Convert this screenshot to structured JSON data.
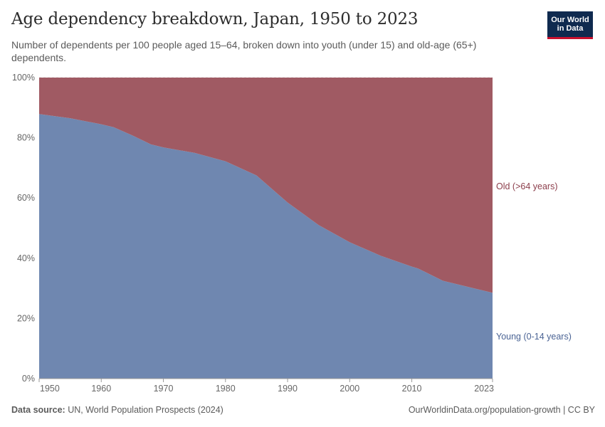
{
  "title": "Age dependency breakdown, Japan, 1950 to 2023",
  "subtitle": "Number of dependents per 100 people aged 15–64, broken down into youth (under 15) and old-age (65+) dependents.",
  "logo": {
    "line1": "Our World",
    "line2": "in Data"
  },
  "footer": {
    "source_label": "Data source:",
    "source_text": "UN, World Population Prospects (2024)",
    "url_text": "OurWorldinData.org/population-growth | CC BY"
  },
  "colors": {
    "young": "#6f87b0",
    "old": "#a05a63",
    "young_label": "#4a6394",
    "old_label": "#8c3e4b"
  },
  "chart_data": {
    "type": "area",
    "stacked": true,
    "relative": true,
    "x": [
      1950,
      1955,
      1960,
      1962,
      1965,
      1968,
      1970,
      1975,
      1980,
      1985,
      1990,
      1995,
      2000,
      2005,
      2010,
      2011,
      2015,
      2020,
      2023
    ],
    "series": [
      {
        "name": "Young (0-14 years)",
        "values": [
          87.9,
          86.5,
          84.5,
          83.5,
          80.8,
          77.8,
          76.8,
          75.0,
          72.2,
          67.5,
          58.5,
          51.0,
          45.3,
          40.8,
          37.2,
          36.6,
          32.5,
          30.0,
          28.5
        ]
      },
      {
        "name": "Old (>64 years)",
        "values": [
          12.1,
          13.5,
          15.5,
          16.5,
          19.2,
          22.2,
          23.2,
          25.0,
          27.8,
          32.5,
          41.5,
          49.0,
          54.7,
          59.2,
          62.8,
          63.4,
          67.5,
          70.0,
          71.5
        ]
      }
    ],
    "ylim": [
      0,
      100
    ],
    "yticks": [
      "0%",
      "20%",
      "40%",
      "60%",
      "80%",
      "100%"
    ],
    "xticks": [
      "1950",
      "1960",
      "1970",
      "1980",
      "1990",
      "2000",
      "2010",
      "2023"
    ],
    "xlim": [
      1950,
      2023
    ],
    "grid": true,
    "legend": "right, inline labels"
  }
}
